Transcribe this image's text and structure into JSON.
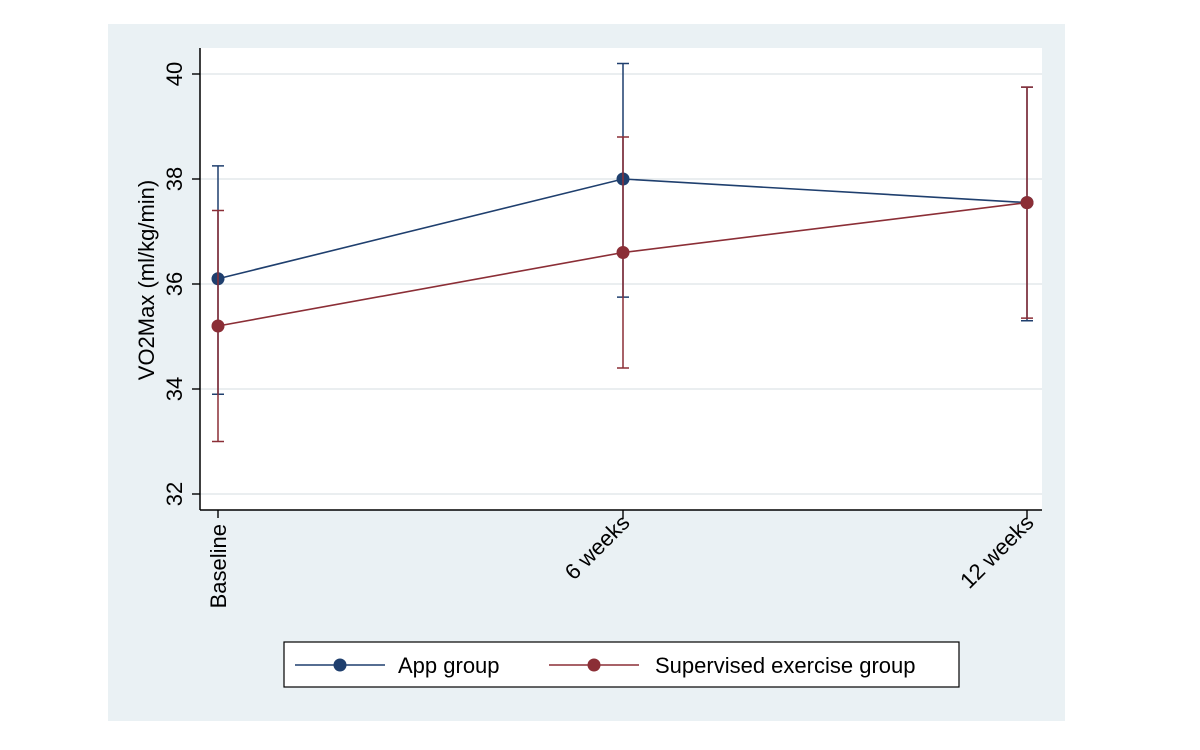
{
  "chart_data": {
    "type": "line",
    "categories": [
      "Baseline",
      "6 weeks",
      "12 weeks"
    ],
    "ylabel": "VO2Max (ml/kg/min)",
    "xlabel": "",
    "ylim": [
      32,
      40.5
    ],
    "yticks": [
      32,
      34,
      36,
      38,
      40
    ],
    "grid": true,
    "legend_position": "bottom",
    "series": [
      {
        "name": "App group",
        "color": "#1f3f6e",
        "values": [
          36.1,
          38.0,
          37.55
        ],
        "ci_low": [
          33.9,
          35.75,
          35.3
        ],
        "ci_high": [
          38.25,
          40.2,
          39.75
        ]
      },
      {
        "name": "Supervised exercise group",
        "color": "#8b2e36",
        "values": [
          35.2,
          36.6,
          37.55
        ],
        "ci_low": [
          33.0,
          34.4,
          35.35
        ],
        "ci_high": [
          37.4,
          38.8,
          39.75
        ]
      }
    ]
  }
}
